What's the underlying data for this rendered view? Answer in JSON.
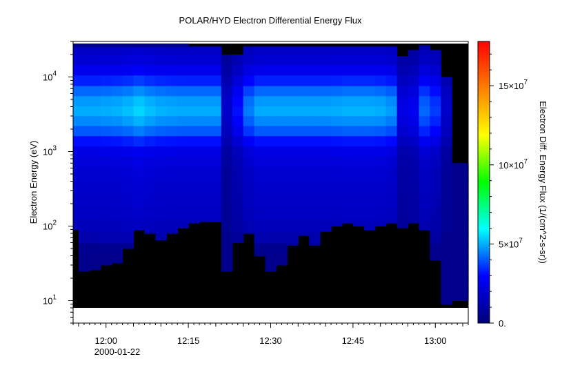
{
  "chart_data": {
    "type": "heatmap",
    "title": "POLAR/HYD  Electron Differential Energy Flux",
    "ylabel": "Electron Energy (eV)",
    "colorbar_label": "Electron Diff. Energy Flux (1/(cm^2-s-sr))",
    "x_axis": {
      "unit": "minutes",
      "range": [
        "11:54",
        "13:06"
      ],
      "date_label": "2000-01-22",
      "ticks": [
        {
          "label": "12:00",
          "value": "12:00"
        },
        {
          "label": "12:15",
          "value": "12:15"
        },
        {
          "label": "12:30",
          "value": "12:30"
        },
        {
          "label": "12:45",
          "value": "12:45"
        },
        {
          "label": "13:00",
          "value": "13:00"
        }
      ]
    },
    "y_axis": {
      "scale": "log",
      "range": [
        5,
        30000
      ],
      "ticks": [
        {
          "base": "10",
          "exp": "1",
          "value": 10
        },
        {
          "base": "10",
          "exp": "2",
          "value": 100
        },
        {
          "base": "10",
          "exp": "3",
          "value": 1000
        },
        {
          "base": "10",
          "exp": "4",
          "value": 10000
        }
      ]
    },
    "colorbar": {
      "range": [
        0,
        178000000
      ],
      "colormap": [
        "#00007a",
        "#0000ff",
        "#00ffff",
        "#00ff00",
        "#ffff00",
        "#ff8000",
        "#ff0000"
      ],
      "ticks": [
        {
          "label": "0.",
          "value": 0
        },
        {
          "label": "5×10",
          "exp": "7",
          "value": 50000000
        },
        {
          "label": "10×10",
          "exp": "7",
          "value": 100000000
        },
        {
          "label": "15×10",
          "exp": "7",
          "value": 150000000
        }
      ]
    },
    "data_rows": {
      "energies_eV": [
        8,
        12,
        18,
        25,
        35,
        50,
        70,
        100,
        150,
        220,
        330,
        500,
        750,
        1000,
        1400,
        1900,
        2600,
        3500,
        4800,
        6500,
        9000,
        12500,
        17000,
        23000,
        28000
      ],
      "peak_flux_by_energy": [
        0,
        0,
        0,
        0,
        0,
        5000000,
        12000000,
        15000000,
        17000000,
        18000000,
        19000000,
        20000000,
        22000000,
        25000000,
        33000000,
        42000000,
        48000000,
        52000000,
        50000000,
        44000000,
        35000000,
        27000000,
        21000000,
        18000000,
        0
      ]
    },
    "columns": [
      {
        "t": "11:54",
        "lo": 90,
        "hi": 28000,
        "k": 0.95
      },
      {
        "t": "11:56",
        "lo": 25,
        "hi": 28000,
        "k": 0.95
      },
      {
        "t": "11:58",
        "lo": 26,
        "hi": 28000,
        "k": 0.95
      },
      {
        "t": "12:00",
        "lo": 30,
        "hi": 28000,
        "k": 0.96
      },
      {
        "t": "12:02",
        "lo": 32,
        "hi": 28000,
        "k": 0.97
      },
      {
        "t": "12:04",
        "lo": 50,
        "hi": 28000,
        "k": 1.0
      },
      {
        "t": "12:06",
        "lo": 90,
        "hi": 28000,
        "k": 1.05
      },
      {
        "t": "12:08",
        "lo": 80,
        "hi": 28000,
        "k": 1.0
      },
      {
        "t": "12:10",
        "lo": 65,
        "hi": 28000,
        "k": 0.97
      },
      {
        "t": "12:12",
        "lo": 80,
        "hi": 28000,
        "k": 0.96
      },
      {
        "t": "12:14",
        "lo": 95,
        "hi": 28000,
        "k": 0.95
      },
      {
        "t": "12:16",
        "lo": 110,
        "hi": 26000,
        "k": 0.95
      },
      {
        "t": "12:18",
        "lo": 115,
        "hi": 26000,
        "k": 0.95
      },
      {
        "t": "12:20",
        "lo": 115,
        "hi": 26000,
        "k": 0.95
      },
      {
        "t": "12:22",
        "lo": 25,
        "hi": 20000,
        "k": 0.35
      },
      {
        "t": "12:24",
        "lo": 60,
        "hi": 20000,
        "k": 0.6
      },
      {
        "t": "12:26",
        "lo": 80,
        "hi": 26000,
        "k": 0.85
      },
      {
        "t": "12:28",
        "lo": 40,
        "hi": 26000,
        "k": 0.95
      },
      {
        "t": "12:30",
        "lo": 25,
        "hi": 26000,
        "k": 0.95
      },
      {
        "t": "12:32",
        "lo": 30,
        "hi": 26000,
        "k": 0.95
      },
      {
        "t": "12:34",
        "lo": 55,
        "hi": 26000,
        "k": 0.95
      },
      {
        "t": "12:36",
        "lo": 75,
        "hi": 26000,
        "k": 0.95
      },
      {
        "t": "12:38",
        "lo": 55,
        "hi": 26000,
        "k": 0.95
      },
      {
        "t": "12:40",
        "lo": 85,
        "hi": 26000,
        "k": 0.95
      },
      {
        "t": "12:42",
        "lo": 100,
        "hi": 26000,
        "k": 0.96
      },
      {
        "t": "12:44",
        "lo": 110,
        "hi": 26000,
        "k": 0.97
      },
      {
        "t": "12:46",
        "lo": 100,
        "hi": 26000,
        "k": 0.97
      },
      {
        "t": "12:48",
        "lo": 90,
        "hi": 26000,
        "k": 0.97
      },
      {
        "t": "12:50",
        "lo": 100,
        "hi": 26000,
        "k": 0.96
      },
      {
        "t": "12:52",
        "lo": 110,
        "hi": 26000,
        "k": 0.92
      },
      {
        "t": "12:54",
        "lo": 95,
        "hi": 19000,
        "k": 0.45
      },
      {
        "t": "12:56",
        "lo": 110,
        "hi": 23000,
        "k": 0.5
      },
      {
        "t": "12:58",
        "lo": 90,
        "hi": 27000,
        "k": 0.8
      },
      {
        "t": "13:00",
        "lo": 35,
        "hi": 23000,
        "k": 0.7
      },
      {
        "t": "13:02",
        "lo": 9,
        "hi": 10000,
        "k": 0.35
      },
      {
        "t": "13:04",
        "lo": 10,
        "hi": 700,
        "k": 0.1
      },
      {
        "t": "13:06",
        "lo": 10,
        "hi": 700,
        "k": 0.1
      }
    ]
  }
}
